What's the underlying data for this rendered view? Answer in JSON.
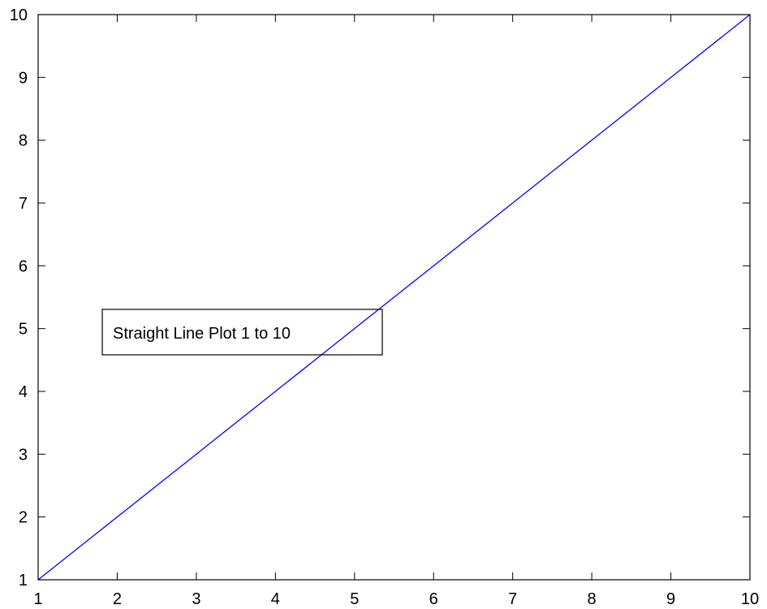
{
  "chart_data": {
    "type": "line",
    "title": "",
    "xlabel": "",
    "ylabel": "",
    "xlim": [
      1,
      10
    ],
    "ylim": [
      1,
      10
    ],
    "x_ticks": [
      1,
      2,
      3,
      4,
      5,
      6,
      7,
      8,
      9,
      10
    ],
    "y_ticks": [
      1,
      2,
      3,
      4,
      5,
      6,
      7,
      8,
      9,
      10
    ],
    "grid": false,
    "legend": "none",
    "series": [
      {
        "color": "#0000ff",
        "x": [
          1,
          2,
          3,
          4,
          5,
          6,
          7,
          8,
          9,
          10
        ],
        "y": [
          1,
          2,
          3,
          4,
          5,
          6,
          7,
          8,
          9,
          10
        ]
      }
    ],
    "annotations": [
      {
        "text": "Straight Line Plot 1 to 10",
        "boxed": true
      }
    ]
  }
}
